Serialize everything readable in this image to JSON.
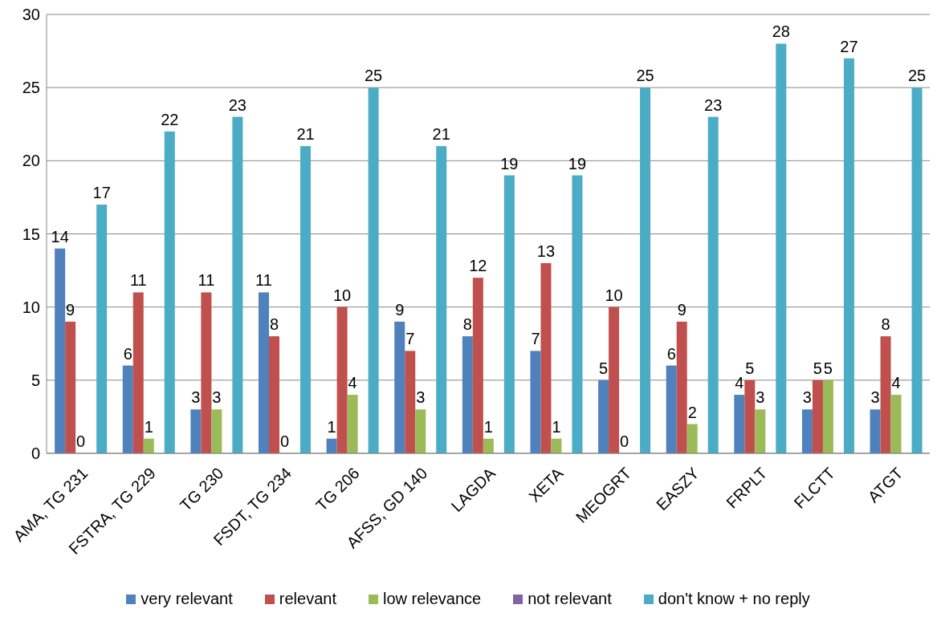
{
  "chart_data": {
    "type": "bar",
    "categories": [
      "AMA, TG 231",
      "FSTRA, TG 229",
      "TG 230",
      "FSDT, TG 234",
      "TG 206",
      "AFSS, GD 140",
      "LAGDA",
      "XETA",
      "MEOGRT",
      "EASZY",
      "FRPLT",
      "FLCTT",
      "ATGT"
    ],
    "series": [
      {
        "name": "very relevant",
        "color": "#4f81bd",
        "values": [
          14,
          6,
          3,
          11,
          1,
          9,
          8,
          7,
          5,
          6,
          4,
          3,
          3
        ]
      },
      {
        "name": "relevant",
        "color": "#c0504d",
        "values": [
          9,
          11,
          11,
          8,
          10,
          7,
          12,
          13,
          10,
          9,
          5,
          5,
          8
        ]
      },
      {
        "name": "low relevance",
        "color": "#9bbb59",
        "values": [
          0,
          1,
          3,
          0,
          4,
          3,
          1,
          1,
          0,
          2,
          3,
          5,
          4
        ]
      },
      {
        "name": "not relevant",
        "color": "#8064a2",
        "values": [
          null,
          null,
          null,
          null,
          null,
          null,
          null,
          null,
          null,
          null,
          null,
          null,
          null
        ]
      },
      {
        "name": "don't know + no reply",
        "color": "#4bacc6",
        "values": [
          17,
          22,
          23,
          21,
          25,
          21,
          19,
          19,
          25,
          23,
          28,
          27,
          25
        ]
      }
    ],
    "ylim": [
      0,
      30
    ],
    "yticks": [
      0,
      5,
      10,
      15,
      20,
      25,
      30
    ],
    "grid": "y",
    "legend": "bottom",
    "data_labels": true
  }
}
